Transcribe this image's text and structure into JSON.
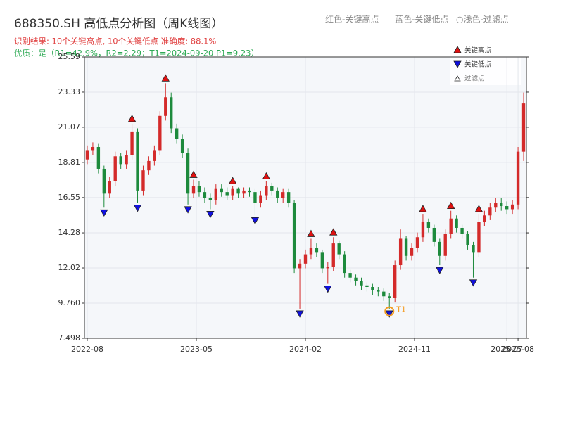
{
  "chart_data": {
    "type": "candlestick",
    "title": "688350.SH 高低点分析图（周K线图）",
    "subtitle": "识别结果: 10个关键高点, 10个关键低点  准确度: 88.1%",
    "quality_note": "优质：是（R1=42.9%，R2=2.29；T1=2024-09-20 P1=9.23）",
    "top_legend": [
      "红色-关键高点",
      "蓝色-关键低点",
      "○浅色-过滤点"
    ],
    "legend": [
      "关键高点",
      "关键低点",
      "过滤点"
    ],
    "up_color": "#d42a2a",
    "down_color": "#1d8a3c",
    "high_color": "#e01010",
    "low_color": "#1010e0",
    "filtered_color": "#ffffff",
    "t1_color": "#f39a1e",
    "grid": true,
    "xlim": [
      -1,
      157
    ],
    "xticks": [
      {
        "value": 0,
        "label": "2022-08"
      },
      {
        "value": 39,
        "label": "2023-05"
      },
      {
        "value": 78,
        "label": "2024-02"
      },
      {
        "value": 117,
        "label": "2024-11"
      },
      {
        "value": 150,
        "label": "2025-07"
      },
      {
        "value": 154,
        "label": "2025-08"
      }
    ],
    "ylim": [
      7.498,
      25.59
    ],
    "yticks": [
      7.498,
      {
        "value": 9.76,
        "label": "9.760"
      },
      12.02,
      14.28,
      16.55,
      18.81,
      21.07,
      23.33,
      25.59
    ],
    "x": [
      0,
      2,
      4,
      6,
      8,
      10,
      12,
      14,
      16,
      18,
      20,
      22,
      24,
      26,
      28,
      30,
      32,
      34,
      36,
      38,
      40,
      42,
      44,
      46,
      48,
      50,
      52,
      54,
      56,
      58,
      60,
      62,
      64,
      66,
      68,
      70,
      72,
      74,
      76,
      78,
      80,
      82,
      84,
      86,
      88,
      90,
      92,
      94,
      96,
      98,
      100,
      102,
      104,
      106,
      108,
      110,
      112,
      114,
      116,
      118,
      120,
      122,
      124,
      126,
      128,
      130,
      132,
      134,
      136,
      138,
      140,
      142,
      144,
      146,
      148,
      150,
      152,
      154,
      156
    ],
    "open": [
      19.0,
      19.6,
      19.8,
      18.4,
      16.8,
      17.6,
      19.2,
      18.7,
      19.3,
      20.8,
      17.0,
      18.3,
      18.9,
      19.6,
      21.8,
      23.0,
      21.0,
      20.3,
      19.4,
      16.8,
      17.3,
      16.9,
      16.5,
      16.4,
      17.1,
      16.9,
      16.7,
      17.1,
      16.8,
      17.0,
      16.9,
      16.2,
      16.7,
      17.3,
      17.0,
      16.5,
      16.9,
      16.2,
      12.0,
      12.3,
      12.9,
      13.3,
      13.0,
      12.0,
      12.1,
      13.6,
      12.9,
      11.7,
      11.4,
      11.2,
      10.9,
      10.8,
      10.6,
      10.5,
      10.2,
      10.1,
      12.2,
      13.9,
      12.8,
      13.3,
      14.0,
      15.0,
      14.6,
      13.7,
      12.8,
      14.2,
      15.2,
      14.6,
      14.2,
      13.5,
      13.0,
      15.0,
      15.4,
      15.9,
      16.2,
      16.0,
      15.8,
      16.1,
      19.5
    ],
    "close": [
      19.6,
      19.8,
      18.4,
      16.8,
      17.6,
      19.2,
      18.7,
      19.3,
      20.8,
      17.0,
      18.3,
      18.9,
      19.6,
      21.8,
      23.0,
      21.0,
      20.3,
      19.4,
      16.8,
      17.3,
      16.9,
      16.5,
      16.4,
      17.1,
      16.9,
      16.7,
      17.1,
      16.8,
      17.0,
      16.9,
      16.2,
      16.7,
      17.3,
      17.0,
      16.5,
      16.9,
      16.2,
      12.0,
      12.3,
      12.9,
      13.3,
      13.0,
      12.0,
      12.1,
      13.6,
      12.9,
      11.7,
      11.4,
      11.2,
      10.9,
      10.8,
      10.6,
      10.5,
      10.2,
      10.1,
      12.2,
      13.9,
      12.8,
      13.3,
      14.0,
      15.0,
      14.6,
      13.7,
      12.8,
      14.2,
      15.2,
      14.6,
      14.2,
      13.5,
      13.0,
      15.0,
      15.4,
      15.9,
      16.2,
      16.0,
      15.8,
      16.1,
      19.5,
      22.6
    ],
    "high": [
      19.9,
      20.1,
      20.0,
      18.6,
      17.9,
      19.5,
      19.4,
      19.6,
      21.3,
      21.0,
      18.6,
      19.2,
      19.9,
      22.1,
      23.9,
      23.3,
      21.3,
      20.6,
      19.7,
      17.7,
      17.6,
      17.2,
      16.8,
      17.4,
      17.4,
      17.2,
      17.3,
      17.2,
      17.2,
      17.2,
      17.1,
      17.0,
      17.6,
      17.5,
      17.2,
      17.1,
      17.1,
      16.4,
      12.6,
      13.2,
      13.9,
      13.6,
      13.2,
      12.4,
      14.0,
      13.8,
      13.1,
      11.9,
      11.6,
      11.4,
      11.1,
      11.0,
      10.8,
      10.7,
      10.4,
      12.5,
      14.5,
      14.1,
      13.6,
      14.3,
      15.5,
      15.2,
      14.8,
      13.9,
      14.5,
      15.7,
      15.4,
      14.8,
      14.4,
      13.7,
      15.5,
      15.7,
      16.2,
      16.5,
      16.5,
      16.3,
      16.4,
      19.8,
      23.3
    ],
    "low": [
      18.7,
      19.3,
      18.1,
      15.9,
      16.5,
      17.3,
      18.4,
      18.4,
      19.0,
      16.2,
      16.7,
      18.0,
      18.6,
      19.3,
      21.5,
      20.7,
      20.0,
      19.1,
      16.1,
      16.5,
      16.6,
      16.2,
      15.8,
      16.1,
      16.6,
      16.4,
      16.4,
      16.5,
      16.5,
      16.6,
      15.4,
      15.9,
      16.4,
      16.7,
      16.2,
      16.2,
      15.9,
      11.7,
      9.4,
      12.0,
      12.6,
      12.7,
      11.7,
      11.0,
      11.8,
      12.6,
      11.4,
      11.1,
      10.9,
      10.6,
      10.5,
      10.3,
      10.2,
      9.9,
      9.4,
      9.8,
      11.9,
      12.5,
      12.5,
      13.0,
      13.7,
      14.3,
      13.4,
      12.2,
      12.5,
      13.9,
      14.3,
      13.9,
      13.2,
      11.4,
      12.7,
      14.7,
      15.1,
      15.6,
      15.7,
      15.5,
      15.5,
      15.8,
      18.9
    ],
    "high_points": {
      "x": [
        16,
        28,
        38,
        52,
        64,
        80,
        88,
        120,
        130,
        140
      ],
      "values": [
        21.3,
        23.9,
        17.7,
        17.3,
        17.6,
        13.9,
        14.0,
        15.5,
        15.7,
        15.5
      ]
    },
    "low_points": {
      "x": [
        6,
        18,
        36,
        44,
        60,
        76,
        86,
        108,
        126,
        138
      ],
      "values": [
        15.9,
        16.2,
        16.1,
        15.8,
        15.4,
        9.4,
        11.0,
        9.4,
        12.2,
        11.4
      ]
    },
    "t1": {
      "label": "T1",
      "x": 108,
      "value": 9.23
    }
  }
}
